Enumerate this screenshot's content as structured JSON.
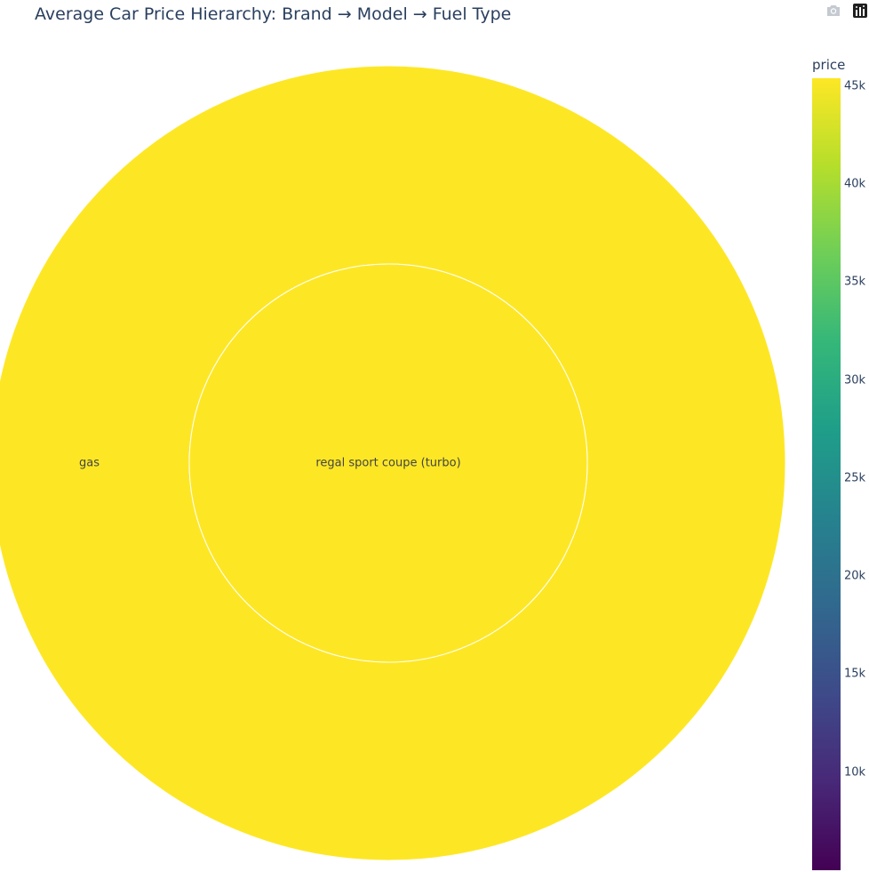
{
  "chart_data": {
    "type": "sunburst",
    "title": "Average Car Price Hierarchy: Brand → Model → Fuel Type",
    "nodes": [
      {
        "id": "model",
        "label": "regal sport coupe (turbo)",
        "ring": 1,
        "value": 45400
      },
      {
        "id": "fuel",
        "label": "gas",
        "ring": 2,
        "value": 45400
      }
    ],
    "colorbar": {
      "title": "price",
      "min": 5000,
      "max": 45400,
      "colorscale": "viridis",
      "ticks": [
        {
          "value": 10000,
          "label": "10k"
        },
        {
          "value": 15000,
          "label": "15k"
        },
        {
          "value": 20000,
          "label": "20k"
        },
        {
          "value": 25000,
          "label": "25k"
        },
        {
          "value": 30000,
          "label": "30k"
        },
        {
          "value": 35000,
          "label": "35k"
        },
        {
          "value": 40000,
          "label": "40k"
        },
        {
          "value": 45000,
          "label": "45k"
        }
      ]
    }
  },
  "modebar": {
    "camera_icon": "camera-icon",
    "plotly_icon": "plotly-logo-icon"
  }
}
